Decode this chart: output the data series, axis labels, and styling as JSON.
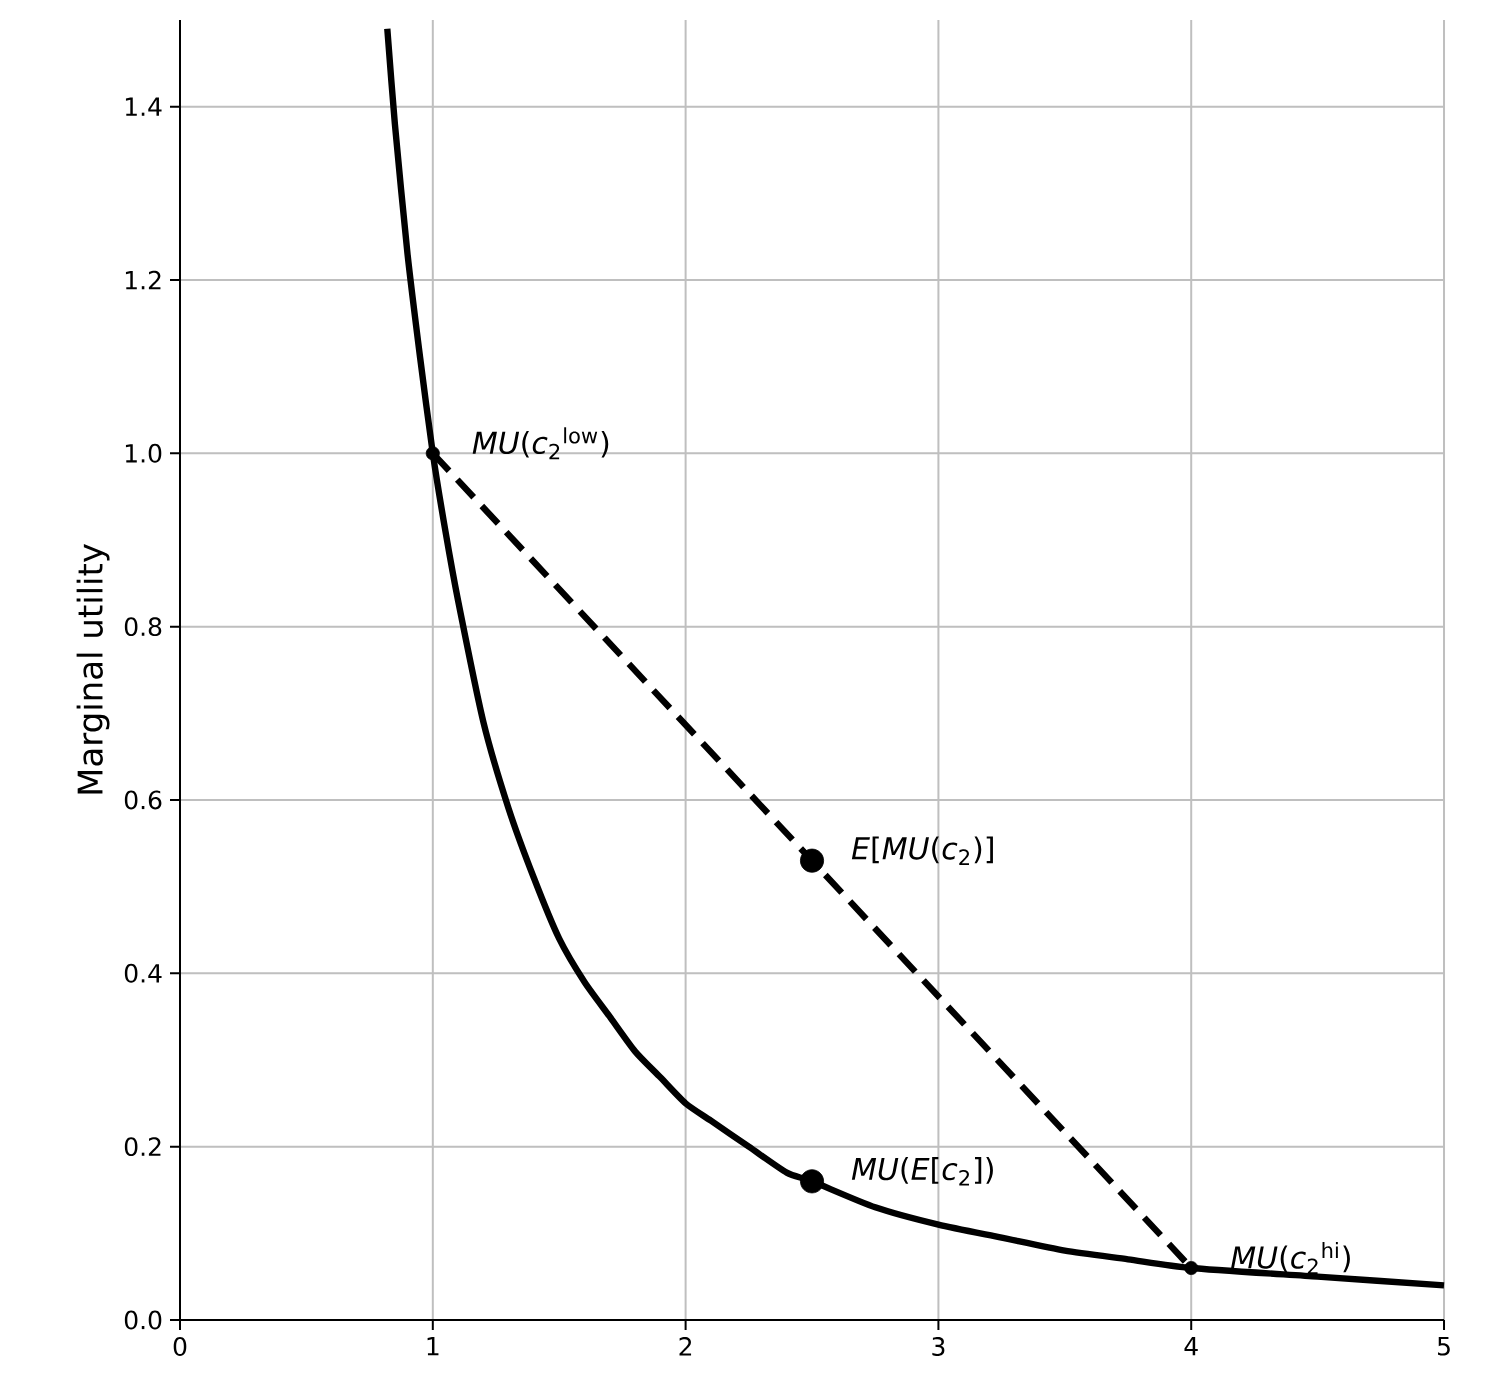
{
  "chart_data": {
    "type": "line",
    "ylabel": "Marginal utility",
    "grid": true,
    "xlim": [
      0,
      5
    ],
    "xticks": [
      0,
      1,
      2,
      3,
      4,
      5
    ],
    "ylim": [
      0,
      1.5
    ],
    "yticks": [
      {
        "value": 0,
        "label": "0.0"
      },
      0.2,
      0.4,
      0.6,
      0.8,
      {
        "value": 1,
        "label": "1.0"
      },
      1.2,
      1.4
    ],
    "series": [
      {
        "color": "#000000",
        "line_style": "solid",
        "x": [
          0.82,
          0.85,
          0.9,
          0.95,
          1,
          1.05,
          1.1,
          1.2,
          1.3,
          1.4,
          1.5,
          1.6,
          1.7,
          1.8,
          1.9,
          2,
          2.1,
          2.25,
          2.4,
          2.5,
          2.75,
          3,
          3.25,
          3.5,
          3.75,
          4,
          4.5,
          5
        ],
        "values": [
          1.49,
          1.38,
          1.23,
          1.11,
          1,
          0.91,
          0.83,
          0.69,
          0.59,
          0.51,
          0.44,
          0.39,
          0.35,
          0.31,
          0.28,
          0.25,
          0.23,
          0.2,
          0.17,
          0.16,
          0.13,
          0.11,
          0.095,
          0.08,
          0.07,
          0.06,
          0.05,
          0.04
        ]
      },
      {
        "color": "#000000",
        "line_style": "dashed",
        "x": [
          1,
          4
        ],
        "values": [
          1,
          0.06
        ]
      },
      {
        "type": "scatter",
        "color": "#000000",
        "marker": "circle",
        "x": [
          1,
          4
        ],
        "values": [
          1,
          0.06
        ]
      },
      {
        "type": "scatter",
        "color": "#000000",
        "marker": "circle",
        "x": [
          2.5,
          2.5
        ],
        "values": [
          0.53,
          0.16
        ]
      }
    ],
    "annotations": [
      {
        "text": "*MU*(*c*$_{2}$$^{low}$)",
        "x": 1,
        "y": 1
      },
      {
        "text": "*E*[*MU*(*c*$_{2}$)]",
        "x": 2.5,
        "y": 0.53
      },
      {
        "text": "*MU*(*E*[*c*$_{2}$])",
        "x": 2.5,
        "y": 0.16
      },
      {
        "text": "*MU*(*c*$_{2}$$^{hi}$)",
        "x": 4,
        "y": 0.06
      }
    ]
  }
}
